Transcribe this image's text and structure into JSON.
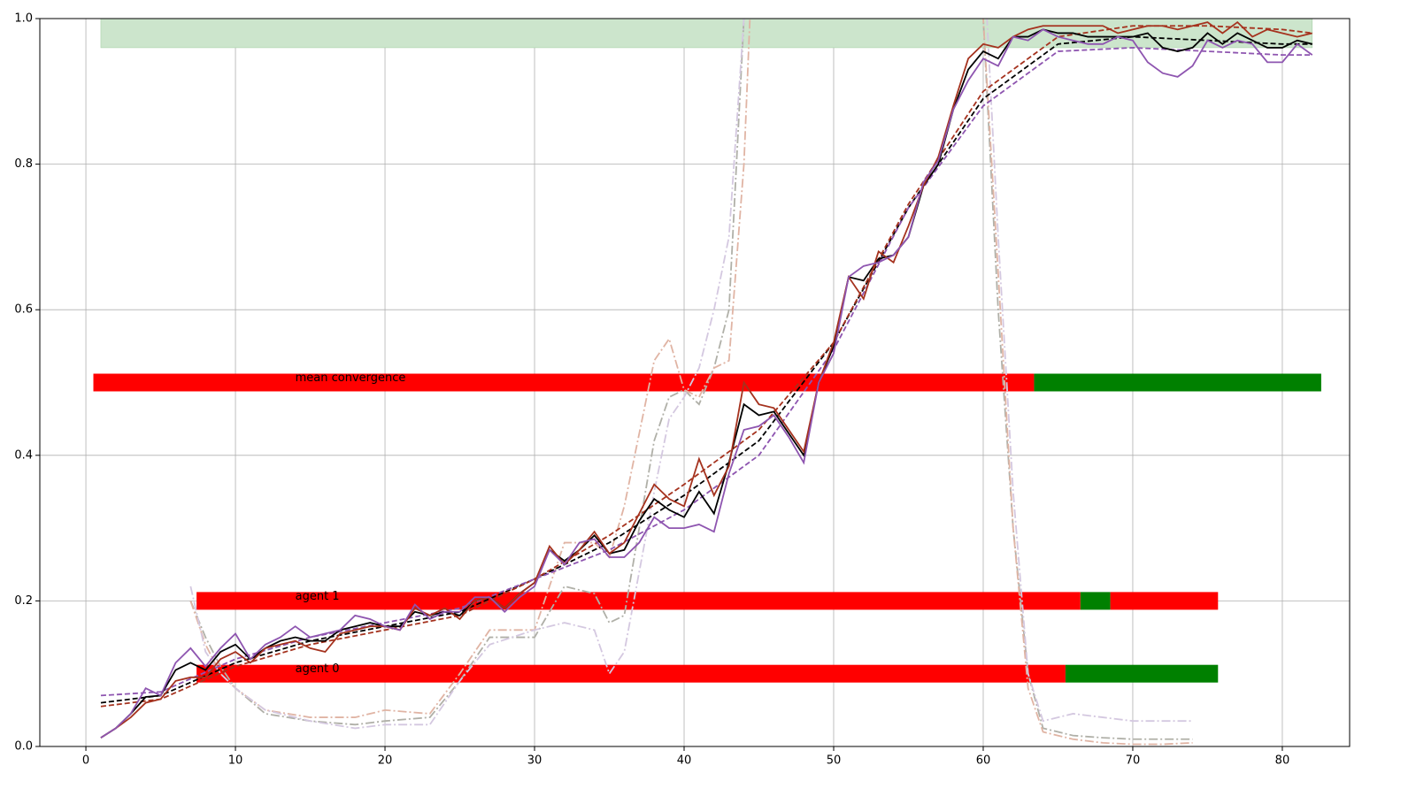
{
  "chart_data": {
    "type": "line",
    "xlim": [
      -3.08,
      84.5
    ],
    "ylim": [
      0,
      1
    ],
    "xticks": [
      0,
      10,
      20,
      30,
      40,
      50,
      60,
      70,
      80
    ],
    "yticks": [
      {
        "value": 0,
        "label": "0.0"
      },
      {
        "value": 0.2,
        "label": "0.2"
      },
      {
        "value": 0.4,
        "label": "0.4"
      },
      {
        "value": 0.6,
        "label": "0.6"
      },
      {
        "value": 0.8,
        "label": "0.8"
      },
      {
        "value": 1,
        "label": "1.0"
      }
    ],
    "grid": true,
    "band": {
      "xlim": [
        1,
        82
      ],
      "ylim": [
        0.96,
        1.0
      ],
      "color": "#cce5cc"
    },
    "groups": [
      {
        "style": "dashdot",
        "x": [
          7,
          8,
          9,
          10,
          12,
          15,
          18,
          20,
          23,
          25,
          27,
          30,
          32,
          34,
          35,
          36,
          38,
          39,
          40,
          41,
          42,
          43,
          44,
          45,
          59,
          60,
          61,
          62,
          63,
          64,
          66,
          68,
          70,
          72,
          74
        ],
        "series": [
          {
            "color": "#b0b0a8",
            "values": [
              0.2,
              0.15,
              0.11,
              0.08,
              0.045,
              0.035,
              0.03,
              0.035,
              0.04,
              0.09,
              0.15,
              0.15,
              0.22,
              0.21,
              0.17,
              0.18,
              0.42,
              0.48,
              0.49,
              0.47,
              0.52,
              0.6,
              1.0,
              1.3,
              1.3,
              1.0,
              0.6,
              0.3,
              0.1,
              0.025,
              0.015,
              0.012,
              0.01,
              0.01,
              0.01
            ]
          },
          {
            "color": "#e0b4a4",
            "values": [
              0.2,
              0.14,
              0.1,
              0.08,
              0.05,
              0.04,
              0.04,
              0.05,
              0.045,
              0.1,
              0.16,
              0.16,
              0.28,
              0.28,
              0.26,
              0.33,
              0.53,
              0.56,
              0.49,
              0.48,
              0.52,
              0.53,
              0.8,
              1.3,
              1.3,
              1.0,
              0.65,
              0.3,
              0.08,
              0.02,
              0.01,
              0.005,
              0.003,
              0.003,
              0.005
            ]
          },
          {
            "color": "#d4c8e0",
            "values": [
              0.22,
              0.13,
              0.1,
              0.08,
              0.05,
              0.035,
              0.025,
              0.03,
              0.03,
              0.09,
              0.14,
              0.16,
              0.17,
              0.16,
              0.1,
              0.13,
              0.35,
              0.45,
              0.48,
              0.52,
              0.6,
              0.7,
              1.0,
              1.3,
              1.3,
              1.1,
              0.7,
              0.35,
              0.1,
              0.035,
              0.045,
              0.04,
              0.035,
              0.035,
              0.035
            ]
          }
        ]
      },
      {
        "style": "dashed",
        "x": [
          1,
          5,
          10,
          15,
          20,
          25,
          30,
          35,
          40,
          45,
          50,
          55,
          60,
          65,
          70,
          75,
          80,
          82
        ],
        "series": [
          {
            "color": "#000000",
            "values": [
              0.06,
              0.07,
              0.115,
              0.145,
              0.165,
              0.185,
              0.23,
              0.28,
              0.345,
              0.42,
              0.555,
              0.74,
              0.89,
              0.965,
              0.975,
              0.97,
              0.965,
              0.965
            ]
          },
          {
            "color": "#a5321e",
            "values": [
              0.055,
              0.065,
              0.11,
              0.14,
              0.16,
              0.18,
              0.23,
              0.29,
              0.36,
              0.435,
              0.555,
              0.745,
              0.9,
              0.975,
              0.99,
              0.99,
              0.985,
              0.98
            ]
          },
          {
            "color": "#8e55b0",
            "values": [
              0.07,
              0.075,
              0.12,
              0.15,
              0.17,
              0.19,
              0.23,
              0.27,
              0.325,
              0.4,
              0.545,
              0.74,
              0.88,
              0.955,
              0.96,
              0.955,
              0.95,
              0.95
            ]
          }
        ]
      },
      {
        "style": "solid",
        "x": [
          1,
          2,
          3,
          4,
          5,
          6,
          7,
          8,
          9,
          10,
          11,
          12,
          13,
          14,
          15,
          16,
          17,
          18,
          19,
          20,
          21,
          22,
          23,
          24,
          25,
          26,
          27,
          28,
          29,
          30,
          31,
          32,
          33,
          34,
          35,
          36,
          37,
          38,
          39,
          40,
          41,
          42,
          43,
          44,
          45,
          46,
          47,
          48,
          49,
          50,
          51,
          52,
          53,
          54,
          55,
          56,
          57,
          58,
          59,
          60,
          61,
          62,
          63,
          64,
          65,
          66,
          67,
          68,
          69,
          70,
          71,
          72,
          73,
          74,
          75,
          76,
          77,
          78,
          79,
          80,
          81,
          82
        ],
        "series": [
          {
            "color": "#000000",
            "values": [
              0.012,
              0.025,
              0.045,
              0.068,
              0.07,
              0.105,
              0.115,
              0.105,
              0.13,
              0.14,
              0.12,
              0.135,
              0.145,
              0.15,
              0.145,
              0.145,
              0.16,
              0.165,
              0.17,
              0.165,
              0.165,
              0.185,
              0.18,
              0.185,
              0.18,
              0.2,
              0.205,
              0.19,
              0.21,
              0.225,
              0.27,
              0.255,
              0.27,
              0.29,
              0.265,
              0.27,
              0.31,
              0.34,
              0.325,
              0.315,
              0.35,
              0.32,
              0.39,
              0.47,
              0.455,
              0.46,
              0.43,
              0.4,
              0.5,
              0.55,
              0.645,
              0.64,
              0.67,
              0.675,
              0.7,
              0.77,
              0.8,
              0.875,
              0.93,
              0.955,
              0.945,
              0.975,
              0.975,
              0.985,
              0.98,
              0.98,
              0.975,
              0.975,
              0.975,
              0.975,
              0.98,
              0.96,
              0.955,
              0.96,
              0.98,
              0.965,
              0.98,
              0.97,
              0.96,
              0.96,
              0.97,
              0.965
            ]
          },
          {
            "color": "#a5321e",
            "values": [
              0.012,
              0.025,
              0.04,
              0.06,
              0.065,
              0.09,
              0.095,
              0.095,
              0.12,
              0.13,
              0.115,
              0.135,
              0.14,
              0.145,
              0.135,
              0.13,
              0.155,
              0.16,
              0.165,
              0.165,
              0.16,
              0.19,
              0.18,
              0.19,
              0.175,
              0.2,
              0.205,
              0.19,
              0.21,
              0.225,
              0.275,
              0.25,
              0.27,
              0.295,
              0.265,
              0.28,
              0.32,
              0.36,
              0.34,
              0.33,
              0.395,
              0.345,
              0.385,
              0.5,
              0.47,
              0.465,
              0.435,
              0.405,
              0.5,
              0.555,
              0.645,
              0.615,
              0.68,
              0.665,
              0.715,
              0.77,
              0.81,
              0.88,
              0.945,
              0.965,
              0.96,
              0.975,
              0.985,
              0.99,
              0.99,
              0.99,
              0.99,
              0.99,
              0.98,
              0.985,
              0.99,
              0.99,
              0.985,
              0.99,
              0.995,
              0.98,
              0.995,
              0.975,
              0.985,
              0.98,
              0.975,
              0.98
            ]
          },
          {
            "color": "#8e55b0",
            "values": [
              0.012,
              0.025,
              0.045,
              0.08,
              0.07,
              0.115,
              0.135,
              0.11,
              0.135,
              0.155,
              0.12,
              0.14,
              0.15,
              0.165,
              0.15,
              0.155,
              0.16,
              0.18,
              0.175,
              0.165,
              0.16,
              0.195,
              0.175,
              0.185,
              0.185,
              0.205,
              0.205,
              0.185,
              0.205,
              0.22,
              0.27,
              0.25,
              0.28,
              0.285,
              0.26,
              0.26,
              0.28,
              0.315,
              0.3,
              0.3,
              0.305,
              0.295,
              0.375,
              0.435,
              0.44,
              0.455,
              0.425,
              0.39,
              0.5,
              0.54,
              0.645,
              0.66,
              0.665,
              0.675,
              0.7,
              0.775,
              0.805,
              0.875,
              0.915,
              0.945,
              0.935,
              0.975,
              0.97,
              0.985,
              0.975,
              0.97,
              0.965,
              0.965,
              0.975,
              0.97,
              0.94,
              0.925,
              0.92,
              0.935,
              0.97,
              0.96,
              0.97,
              0.965,
              0.94,
              0.94,
              0.965,
              0.95
            ]
          }
        ]
      }
    ],
    "bars": [
      {
        "label": "mean convergence",
        "y": 0.5,
        "segments": [
          {
            "start": 0.5,
            "end": 63.4,
            "color": "#ff0000"
          },
          {
            "start": 63.4,
            "end": 82.6,
            "color": "#008000"
          }
        ]
      },
      {
        "label": "agent 1",
        "y": 0.2,
        "segments": [
          {
            "start": 7.4,
            "end": 66.5,
            "color": "#ff0000"
          },
          {
            "start": 66.5,
            "end": 68.5,
            "color": "#008000"
          },
          {
            "start": 68.5,
            "end": 75.7,
            "color": "#ff0000"
          }
        ]
      },
      {
        "label": "agent 0",
        "y": 0.1,
        "segments": [
          {
            "start": 7.4,
            "end": 65.5,
            "color": "#ff0000"
          },
          {
            "start": 65.5,
            "end": 75.7,
            "color": "#008000"
          }
        ]
      }
    ]
  }
}
